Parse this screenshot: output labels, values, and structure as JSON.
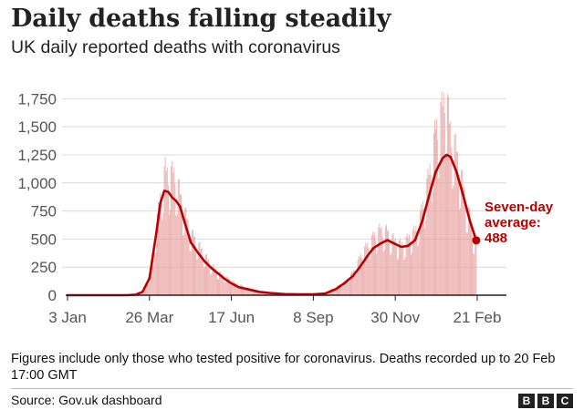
{
  "header": {
    "title": "Daily deaths falling steadily",
    "subtitle": "UK daily reported deaths with coronavirus"
  },
  "footer": {
    "note": "Figures include only those who tested positive for coronavirus. Deaths recorded up to 20 Feb 17:00 GMT",
    "source": "Source: Gov.uk dashboard",
    "logo_letters": [
      "B",
      "B",
      "C"
    ]
  },
  "colors": {
    "bars": "#e8a3a3",
    "line": "#b80000",
    "axis": "#222222",
    "grid": "#d9d9d9",
    "annotation": "#b80000"
  },
  "chart_data": {
    "type": "bar",
    "title": "Daily deaths falling steadily",
    "subtitle": "UK daily reported deaths with coronavirus",
    "xlabel": "",
    "ylabel": "",
    "ylim": [
      0,
      1850
    ],
    "yticks": [
      0,
      250,
      500,
      750,
      1000,
      1250,
      1500,
      1750
    ],
    "ytick_labels": [
      "0",
      "250",
      "500",
      "750",
      "1,000",
      "1,250",
      "1,500",
      "1,750"
    ],
    "x_domain": [
      "2020-01-03",
      "2021-02-21"
    ],
    "xtick_dates": [
      "2020-01-03",
      "2020-03-26",
      "2020-06-17",
      "2020-09-08",
      "2020-11-30",
      "2021-02-21"
    ],
    "xtick_labels": [
      "3 Jan",
      "26 Mar",
      "17 Jun",
      "8 Sep",
      "30 Nov",
      "21 Feb"
    ],
    "grid": true,
    "daily_reported_deaths": {
      "name": "Daily reported deaths",
      "style": "bars",
      "anchors": [
        [
          "2020-03-05",
          0
        ],
        [
          "2020-03-12",
          8
        ],
        [
          "2020-03-19",
          40
        ],
        [
          "2020-03-26",
          160
        ],
        [
          "2020-04-02",
          620
        ],
        [
          "2020-04-08",
          980
        ],
        [
          "2020-04-11",
          1100
        ],
        [
          "2020-04-15",
          1050
        ],
        [
          "2020-04-21",
          1080
        ],
        [
          "2020-04-26",
          880
        ],
        [
          "2020-05-01",
          720
        ],
        [
          "2020-05-07",
          550
        ],
        [
          "2020-05-14",
          450
        ],
        [
          "2020-05-21",
          350
        ],
        [
          "2020-05-28",
          260
        ],
        [
          "2020-06-04",
          200
        ],
        [
          "2020-06-11",
          160
        ],
        [
          "2020-06-18",
          120
        ],
        [
          "2020-06-25",
          90
        ],
        [
          "2020-07-05",
          60
        ],
        [
          "2020-07-15",
          35
        ],
        [
          "2020-07-25",
          25
        ],
        [
          "2020-08-10",
          12
        ],
        [
          "2020-08-25",
          10
        ],
        [
          "2020-09-08",
          8
        ],
        [
          "2020-09-20",
          25
        ],
        [
          "2020-10-01",
          70
        ],
        [
          "2020-10-10",
          120
        ],
        [
          "2020-10-18",
          200
        ],
        [
          "2020-10-25",
          330
        ],
        [
          "2020-11-01",
          430
        ],
        [
          "2020-11-08",
          520
        ],
        [
          "2020-11-15",
          580
        ],
        [
          "2020-11-22",
          560
        ],
        [
          "2020-11-29",
          480
        ],
        [
          "2020-12-06",
          440
        ],
        [
          "2020-12-13",
          500
        ],
        [
          "2020-12-20",
          560
        ],
        [
          "2020-12-27",
          750
        ],
        [
          "2021-01-03",
          1050
        ],
        [
          "2021-01-10",
          1450
        ],
        [
          "2021-01-17",
          1650
        ],
        [
          "2021-01-20",
          1820
        ],
        [
          "2021-01-24",
          1500
        ],
        [
          "2021-01-31",
          1250
        ],
        [
          "2021-02-07",
          950
        ],
        [
          "2021-02-14",
          650
        ],
        [
          "2021-02-20",
          445
        ]
      ]
    },
    "seven_day_average": {
      "name": "Seven-day average",
      "style": "line",
      "points": [
        [
          "2020-01-03",
          0
        ],
        [
          "2020-03-03",
          0
        ],
        [
          "2020-03-12",
          5
        ],
        [
          "2020-03-19",
          30
        ],
        [
          "2020-03-26",
          150
        ],
        [
          "2020-04-02",
          560
        ],
        [
          "2020-04-06",
          820
        ],
        [
          "2020-04-10",
          930
        ],
        [
          "2020-04-14",
          920
        ],
        [
          "2020-04-18",
          870
        ],
        [
          "2020-04-22",
          840
        ],
        [
          "2020-04-26",
          790
        ],
        [
          "2020-05-01",
          640
        ],
        [
          "2020-05-07",
          470
        ],
        [
          "2020-05-14",
          380
        ],
        [
          "2020-05-21",
          300
        ],
        [
          "2020-05-28",
          240
        ],
        [
          "2020-06-04",
          190
        ],
        [
          "2020-06-11",
          140
        ],
        [
          "2020-06-18",
          100
        ],
        [
          "2020-06-25",
          70
        ],
        [
          "2020-07-05",
          50
        ],
        [
          "2020-07-15",
          30
        ],
        [
          "2020-07-25",
          20
        ],
        [
          "2020-08-10",
          10
        ],
        [
          "2020-08-25",
          8
        ],
        [
          "2020-09-08",
          8
        ],
        [
          "2020-09-20",
          15
        ],
        [
          "2020-10-01",
          55
        ],
        [
          "2020-10-10",
          110
        ],
        [
          "2020-10-18",
          170
        ],
        [
          "2020-10-25",
          250
        ],
        [
          "2020-11-01",
          340
        ],
        [
          "2020-11-08",
          420
        ],
        [
          "2020-11-15",
          460
        ],
        [
          "2020-11-22",
          490
        ],
        [
          "2020-11-29",
          460
        ],
        [
          "2020-12-06",
          430
        ],
        [
          "2020-12-13",
          440
        ],
        [
          "2020-12-20",
          490
        ],
        [
          "2020-12-27",
          650
        ],
        [
          "2021-01-03",
          880
        ],
        [
          "2021-01-10",
          1100
        ],
        [
          "2021-01-17",
          1220
        ],
        [
          "2021-01-21",
          1250
        ],
        [
          "2021-01-25",
          1230
        ],
        [
          "2021-01-31",
          1100
        ],
        [
          "2021-02-07",
          880
        ],
        [
          "2021-02-14",
          650
        ],
        [
          "2021-02-20",
          488
        ]
      ]
    },
    "annotation": {
      "lines": [
        "Seven-day",
        "average:",
        "488"
      ],
      "date": "2021-02-20",
      "value": 488
    }
  }
}
